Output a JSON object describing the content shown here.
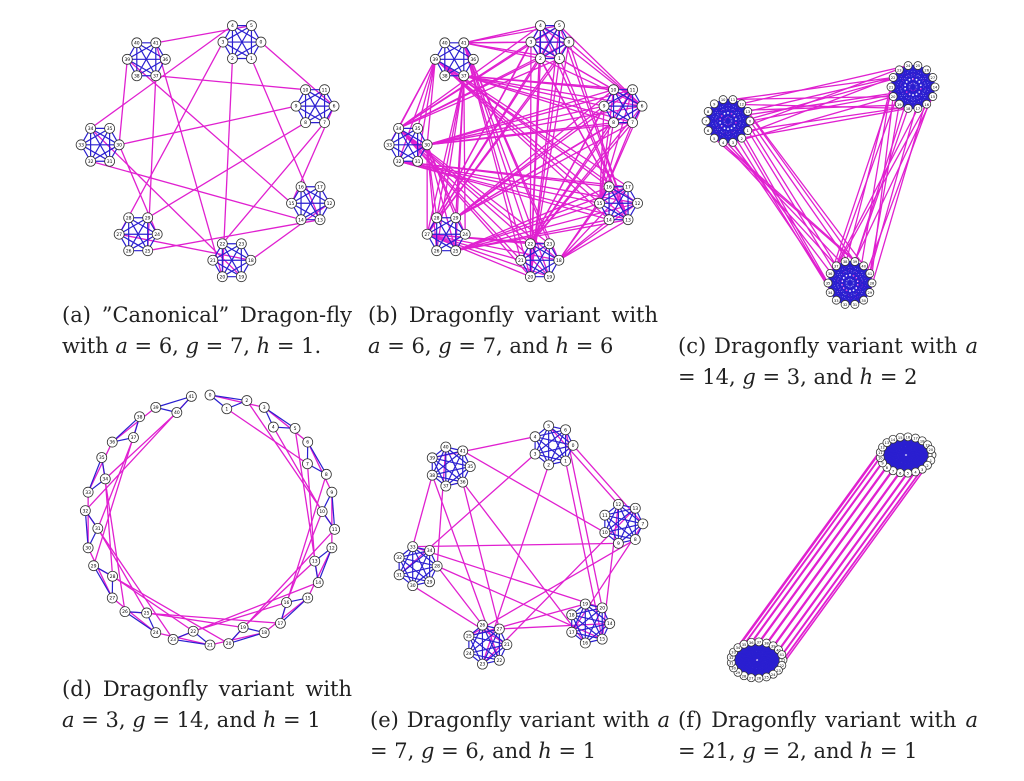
{
  "colors": {
    "intra": "#2a1fd0",
    "inter": "#e020d0",
    "node_fill": "#ffffff",
    "node_stroke": "#333333",
    "text": "#222222"
  },
  "panels": [
    {
      "id": "a",
      "a": 6,
      "g": 7,
      "h": 1,
      "caption": [
        {
          "t": "(a) ”Canonical” Dragon-fly with "
        },
        {
          "m": "a"
        },
        {
          "t": " = 6, "
        },
        {
          "m": "g"
        },
        {
          "t": " = 7, "
        },
        {
          "m": "h"
        },
        {
          "t": " = 1."
        }
      ]
    },
    {
      "id": "b",
      "a": 6,
      "g": 7,
      "h": 6,
      "caption": [
        {
          "t": "(b) Dragonfly variant with "
        },
        {
          "m": "a"
        },
        {
          "t": " = 6, "
        },
        {
          "m": "g"
        },
        {
          "t": " = 7, and "
        },
        {
          "m": "h"
        },
        {
          "t": " = 6"
        }
      ]
    },
    {
      "id": "c",
      "a": 14,
      "g": 3,
      "h": 2,
      "caption": [
        {
          "t": "(c) Dragonfly variant with "
        },
        {
          "m": "a"
        },
        {
          "t": " = 14, "
        },
        {
          "m": "g"
        },
        {
          "t": " = 3, and "
        },
        {
          "m": "h"
        },
        {
          "t": " = 2"
        }
      ]
    },
    {
      "id": "d",
      "a": 3,
      "g": 14,
      "h": 1,
      "caption": [
        {
          "t": "(d) Dragonfly variant with "
        },
        {
          "m": "a"
        },
        {
          "t": " = 3, "
        },
        {
          "m": "g"
        },
        {
          "t": " = 14, and "
        },
        {
          "m": "h"
        },
        {
          "t": " = 1"
        }
      ]
    },
    {
      "id": "e",
      "a": 7,
      "g": 6,
      "h": 1,
      "caption": [
        {
          "t": "(e) Dragonfly variant with "
        },
        {
          "m": "a"
        },
        {
          "t": " = 7, "
        },
        {
          "m": "g"
        },
        {
          "t": " = 6, and "
        },
        {
          "m": "h"
        },
        {
          "t": " = 1"
        }
      ]
    },
    {
      "id": "f",
      "a": 21,
      "g": 2,
      "h": 1,
      "caption": [
        {
          "t": "(f) Dragonfly variant with "
        },
        {
          "m": "a"
        },
        {
          "t": " = 21, "
        },
        {
          "m": "g"
        },
        {
          "t": " = 2, and "
        },
        {
          "m": "h"
        },
        {
          "t": " = 1"
        }
      ]
    }
  ]
}
